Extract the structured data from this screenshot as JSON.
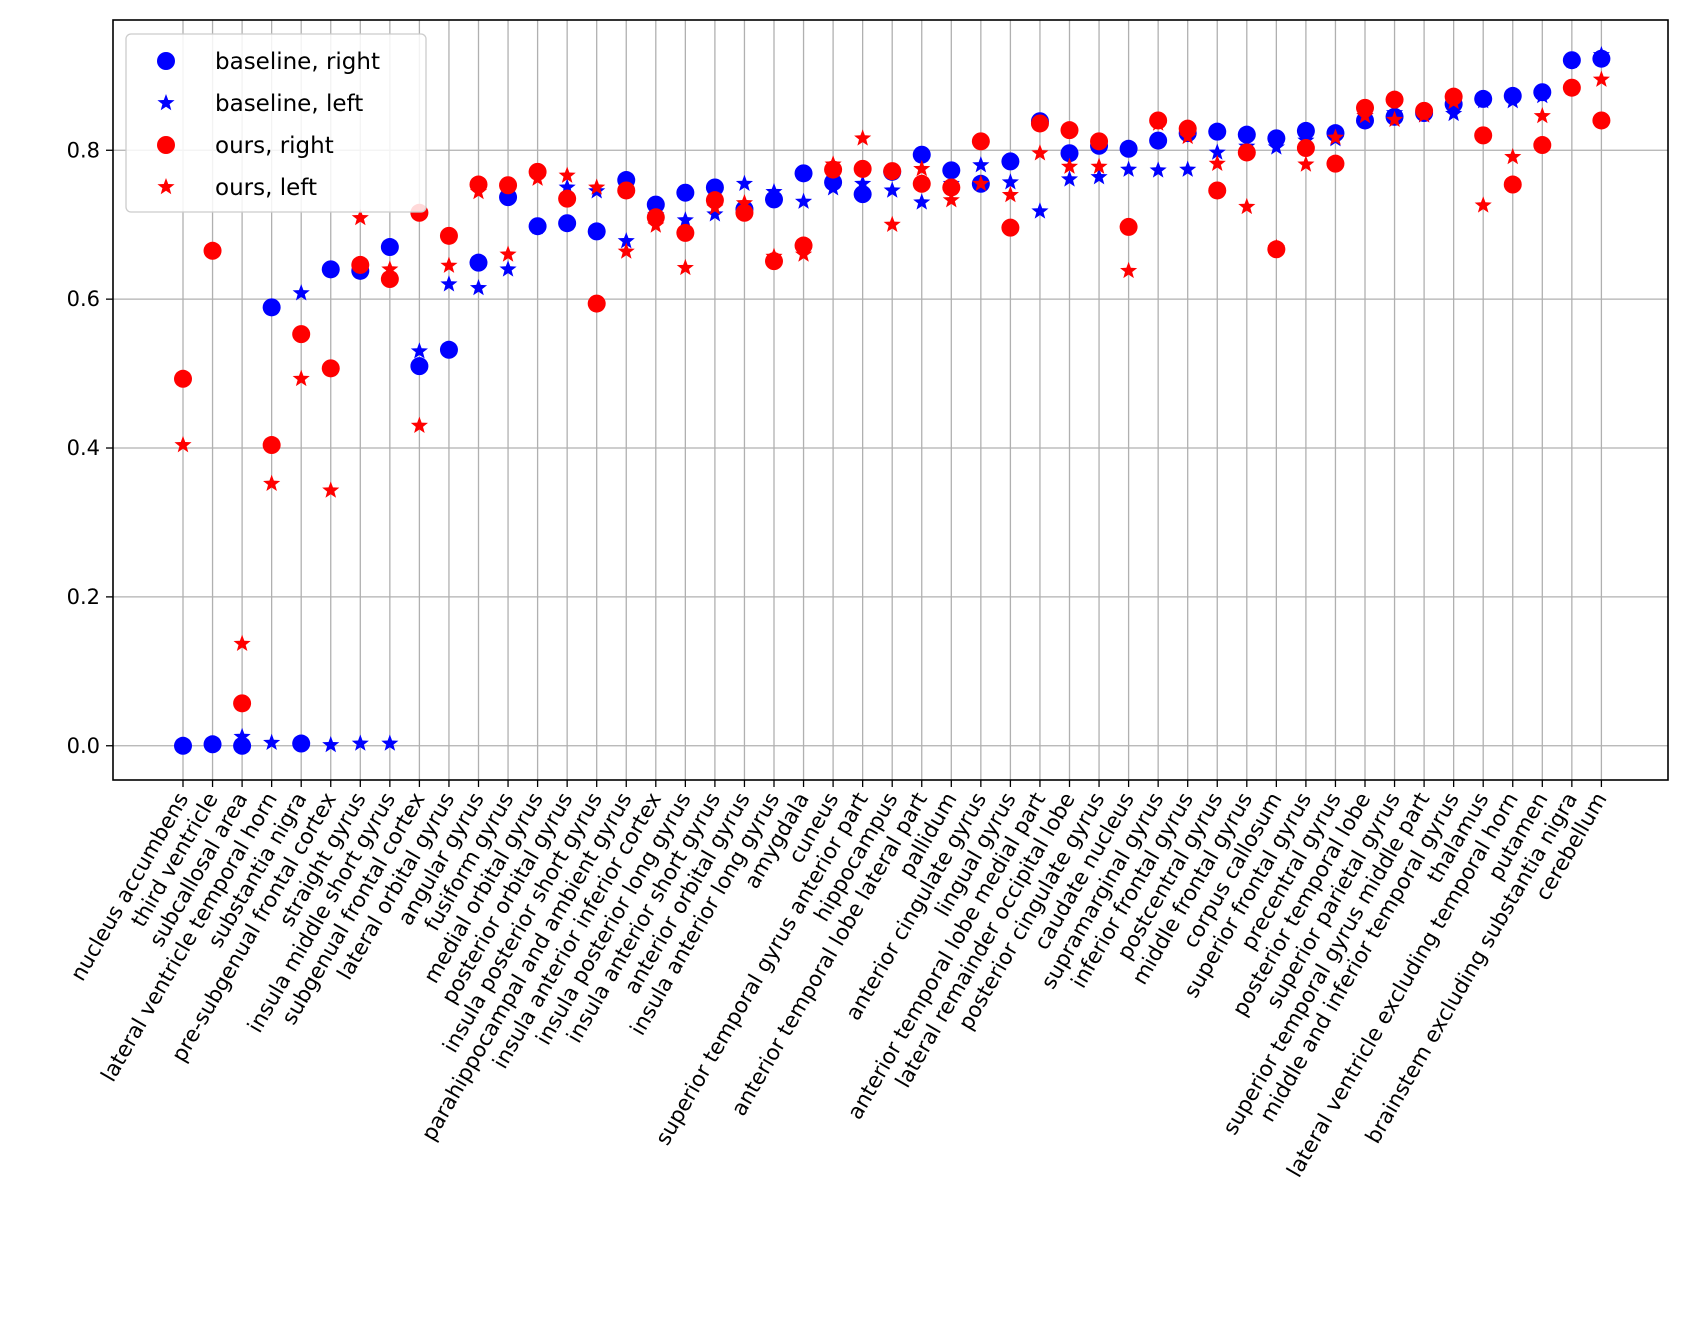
{
  "chart_data": {
    "type": "scatter",
    "title": "",
    "xlabel": "",
    "ylabel": "",
    "ylim": [
      -0.046,
      0.975
    ],
    "yticks": [
      0.0,
      0.2,
      0.4,
      0.6,
      0.8
    ],
    "ytick_labels": [
      "0.0",
      "0.2",
      "0.4",
      "0.6",
      "0.8"
    ],
    "grid": true,
    "legend_position": "top-left",
    "colors": {
      "blue": "#0000ff",
      "red": "#ff0000",
      "grid": "#b0b0b0",
      "axes": "#000000"
    },
    "categories": [
      "nucleus accumbens",
      "third ventricle",
      "subcallosal area",
      "lateral ventricle temporal horn",
      "substantia nigra",
      "pre-subgenual frontal cortex",
      "straight gyrus",
      "insula middle short gyrus",
      "subgenual frontal cortex",
      "lateral orbital gyrus",
      "angular gyrus",
      "fusiform gyrus",
      "medial orbital gyrus",
      "posterior orbital gyrus",
      "insula posterior short gyrus",
      "parahippocampal and ambient gyrus",
      "insula anterior inferior cortex",
      "insula posterior long gyrus",
      "insula anterior short gyrus",
      "anterior orbital gyrus",
      "insula anterior long gyrus",
      "amygdala",
      "cuneus",
      "superior temporal gyrus anterior part",
      "hippocampus",
      "anterior temporal lobe lateral part",
      "pallidum",
      "anterior cingulate gyrus",
      "lingual gyrus",
      "anterior temporal lobe medial part",
      "lateral remainder occipital lobe",
      "posterior cingulate gyrus",
      "caudate nucleus",
      "supramarginal gyrus",
      "inferior frontal gyrus",
      "postcentral gyrus",
      "middle frontal gyrus",
      "corpus callosum",
      "superior frontal gyrus",
      "precentral gyrus",
      "posterior temporal lobe",
      "superior parietal gyrus",
      "superior temporal gyrus middle part",
      "middle and inferior temporal gyrus",
      "thalamus",
      "lateral ventricle excluding temporal horn",
      "putamen",
      "brainstem excluding substantia nigra",
      "cerebellum"
    ],
    "series": [
      {
        "name": "baseline, right",
        "marker": "circle",
        "color": "#0000ff",
        "values": [
          0.0,
          0.002,
          0.0,
          0.589,
          0.003,
          0.64,
          0.638,
          0.67,
          0.51,
          0.532,
          0.649,
          0.737,
          0.698,
          0.702,
          0.691,
          0.76,
          0.727,
          0.743,
          0.75,
          0.721,
          0.734,
          0.769,
          0.757,
          0.741,
          0.771,
          0.794,
          0.773,
          0.755,
          0.785,
          0.839,
          0.796,
          0.806,
          0.802,
          0.813,
          0.823,
          0.825,
          0.821,
          0.816,
          0.826,
          0.823,
          0.84,
          0.845,
          0.85,
          0.862,
          0.869,
          0.873,
          0.878,
          0.921,
          0.923
        ]
      },
      {
        "name": "baseline, left",
        "marker": "star",
        "color": "#0000ff",
        "values": [
          0.0,
          0.002,
          0.012,
          0.004,
          0.608,
          0.001,
          0.003,
          0.003,
          0.53,
          0.62,
          0.615,
          0.64,
          0.697,
          0.75,
          0.745,
          0.678,
          0.713,
          0.706,
          0.714,
          0.755,
          0.744,
          0.731,
          0.749,
          0.755,
          0.746,
          0.73,
          0.755,
          0.78,
          0.757,
          0.718,
          0.761,
          0.764,
          0.774,
          0.773,
          0.774,
          0.797,
          0.805,
          0.804,
          0.813,
          0.815,
          0.846,
          0.85,
          0.847,
          0.849,
          0.866,
          0.866,
          0.873,
          0.92,
          0.928
        ]
      },
      {
        "name": "ours, right",
        "marker": "circle",
        "color": "#ff0000",
        "values": [
          0.493,
          0.665,
          0.057,
          0.404,
          0.553,
          0.507,
          0.646,
          0.627,
          0.716,
          0.685,
          0.754,
          0.753,
          0.771,
          0.735,
          0.594,
          0.746,
          0.71,
          0.689,
          0.733,
          0.716,
          0.651,
          0.672,
          0.774,
          0.775,
          0.772,
          0.755,
          0.75,
          0.812,
          0.696,
          0.836,
          0.827,
          0.812,
          0.697,
          0.84,
          0.829,
          0.746,
          0.797,
          0.667,
          0.803,
          0.782,
          0.857,
          0.868,
          0.853,
          0.872,
          0.82,
          0.754,
          0.807,
          0.884,
          0.84
        ]
      },
      {
        "name": "ours, left",
        "marker": "star",
        "color": "#ff0000",
        "values": [
          0.404,
          0.665,
          0.137,
          0.352,
          0.493,
          0.343,
          0.709,
          0.64,
          0.43,
          0.645,
          0.744,
          0.66,
          0.762,
          0.766,
          0.75,
          0.664,
          0.699,
          0.642,
          0.723,
          0.729,
          0.657,
          0.66,
          0.781,
          0.816,
          0.7,
          0.775,
          0.733,
          0.755,
          0.74,
          0.796,
          0.778,
          0.778,
          0.638,
          0.836,
          0.818,
          0.782,
          0.724,
          0.669,
          0.781,
          0.817,
          0.846,
          0.841,
          0.847,
          0.865,
          0.726,
          0.791,
          0.846,
          0.884,
          0.895
        ]
      }
    ]
  }
}
